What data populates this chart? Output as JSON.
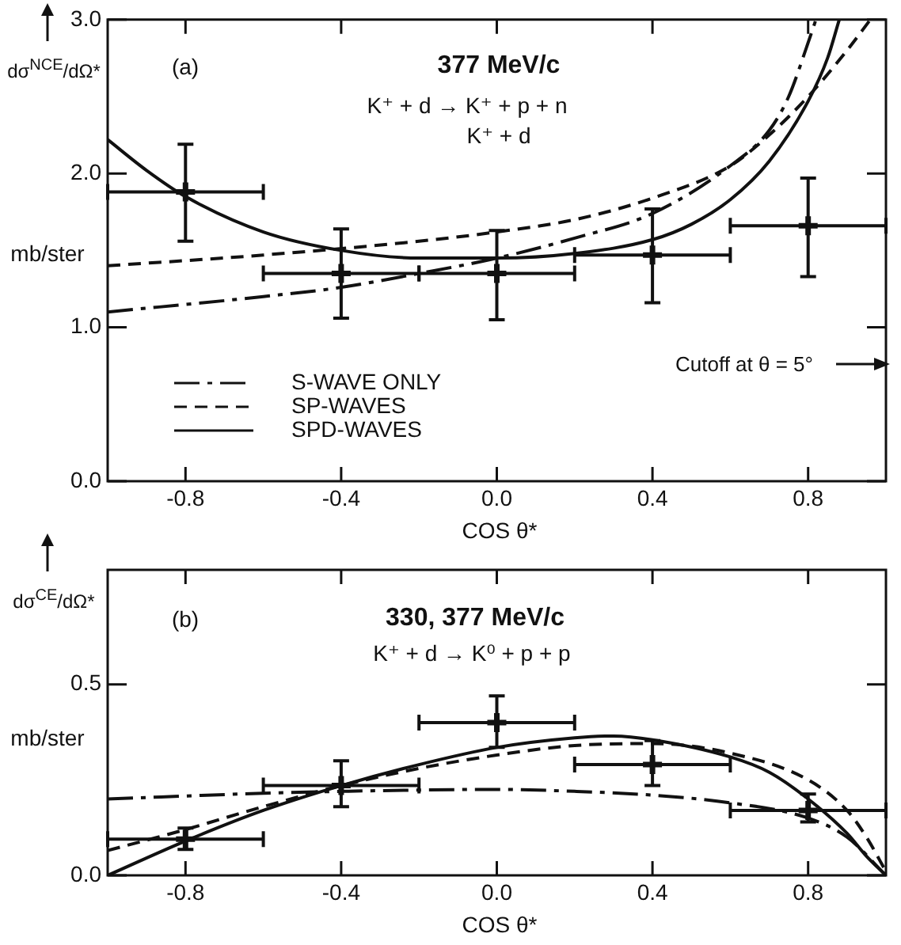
{
  "chart_data": [
    {
      "type": "line",
      "title": "377 MeV/c",
      "xlabel": "COS θ*",
      "ylabel": "dσ$^{NCE}$/dΩ*",
      "annotations": [
        "(a)",
        "K⁺ + d → K⁺ + p + n",
        "K⁺ + d",
        "mb/ster",
        "Cutoff at θ = 5°"
      ],
      "xlim": [
        -1,
        1
      ],
      "xticks": [
        -0.8,
        -0.4,
        {
          "value": 0,
          "label": "0.0"
        },
        0.4,
        0.8
      ],
      "ylim": [
        0,
        3
      ],
      "yticks": [
        {
          "value": 0,
          "label": "0.0"
        },
        {
          "value": 1,
          "label": "1.0"
        },
        {
          "value": 2,
          "label": "2.0"
        },
        {
          "value": 3,
          "label": "3.0"
        }
      ],
      "legend": "bottom left",
      "series": [
        {
          "name": "S-WAVE ONLY",
          "type": "line",
          "line_style": "dashdot",
          "color": "#111111",
          "x": [
            -1,
            -0.6,
            -0.4,
            -0.2,
            0,
            0.2,
            0.4,
            0.6,
            0.7,
            0.75,
            0.8,
            0.82
          ],
          "values": [
            1.1,
            1.2,
            1.26,
            1.35,
            1.45,
            1.58,
            1.74,
            2.05,
            2.28,
            2.5,
            2.85,
            3.0
          ]
        },
        {
          "name": "SP-WAVES",
          "type": "line",
          "line_style": "dashed",
          "color": "#111111",
          "x": [
            -1,
            -0.6,
            -0.2,
            0,
            0.2,
            0.4,
            0.6,
            0.7,
            0.8,
            0.9,
            0.96
          ],
          "values": [
            1.4,
            1.47,
            1.56,
            1.62,
            1.7,
            1.84,
            2.05,
            2.25,
            2.5,
            2.8,
            3.0
          ]
        },
        {
          "name": "SPD-WAVES",
          "type": "line",
          "line_style": "solid",
          "color": "#111111",
          "x": [
            -1,
            -0.9,
            -0.8,
            -0.6,
            -0.4,
            -0.2,
            0,
            0.2,
            0.4,
            0.5,
            0.6,
            0.7,
            0.8,
            0.85,
            0.88
          ],
          "values": [
            2.22,
            2.02,
            1.85,
            1.62,
            1.5,
            1.45,
            1.45,
            1.48,
            1.57,
            1.67,
            1.83,
            2.08,
            2.47,
            2.75,
            3.0
          ]
        },
        {
          "type": "scatter",
          "marker": "cross",
          "color": "#111111",
          "x": [
            -0.8,
            -0.4,
            0,
            0.4,
            0.8
          ],
          "values": [
            1.88,
            1.35,
            1.35,
            1.47,
            1.66
          ],
          "errors": [
            [
              1.56,
              2.19
            ],
            [
              1.06,
              1.64
            ],
            [
              1.05,
              1.63
            ],
            [
              1.16,
              1.77
            ],
            [
              1.33,
              1.97
            ]
          ],
          "xerrors": [
            [
              -1,
              -0.6
            ],
            [
              -0.6,
              -0.2
            ],
            [
              -0.2,
              0.2
            ],
            [
              0.2,
              0.6
            ],
            [
              0.6,
              1.0
            ]
          ]
        }
      ]
    },
    {
      "type": "line",
      "title": "330, 377 MeV/c",
      "xlabel": "COS θ*",
      "ylabel": "dσ$^{CE}$/dΩ*",
      "annotations": [
        "(b)",
        "K⁺ + d → K⁰ + p + p",
        "mb/ster"
      ],
      "xlim": [
        -1,
        1
      ],
      "xticks": [
        -0.8,
        -0.4,
        {
          "value": 0,
          "label": "0.0"
        },
        0.4,
        0.8
      ],
      "ylim": [
        0,
        0.8
      ],
      "yticks": [
        {
          "value": 0,
          "label": "0.0"
        },
        0.5
      ],
      "series": [
        {
          "type": "line",
          "line_style": "dashdot",
          "color": "#111111",
          "x": [
            -1,
            -0.6,
            -0.4,
            0,
            0.2,
            0.4,
            0.6,
            0.8,
            0.9,
            1.0
          ],
          "values": [
            0.2,
            0.215,
            0.22,
            0.225,
            0.22,
            0.21,
            0.19,
            0.15,
            0.1,
            0.0
          ]
        },
        {
          "type": "line",
          "line_style": "dashed",
          "color": "#111111",
          "x": [
            -1,
            -0.8,
            -0.6,
            -0.4,
            -0.2,
            0,
            0.2,
            0.4,
            0.6,
            0.8,
            0.9,
            0.95,
            1.0
          ],
          "values": [
            0.065,
            0.12,
            0.18,
            0.235,
            0.28,
            0.315,
            0.34,
            0.345,
            0.32,
            0.25,
            0.17,
            0.1,
            0.01
          ]
        },
        {
          "type": "line",
          "line_style": "solid",
          "color": "#111111",
          "x": [
            -1,
            -0.8,
            -0.6,
            -0.4,
            -0.2,
            0,
            0.2,
            0.3,
            0.4,
            0.6,
            0.7,
            0.8,
            0.9,
            0.95,
            1.0
          ],
          "values": [
            0,
            0.09,
            0.17,
            0.235,
            0.29,
            0.335,
            0.36,
            0.365,
            0.355,
            0.31,
            0.27,
            0.2,
            0.11,
            0.05,
            0
          ]
        },
        {
          "type": "scatter",
          "marker": "cross",
          "color": "#111111",
          "x": [
            -0.8,
            -0.4,
            0,
            0.4,
            0.8
          ],
          "values": [
            0.095,
            0.235,
            0.4,
            0.29,
            0.17
          ],
          "errors": [
            [
              0.068,
              0.124
            ],
            [
              0.18,
              0.3
            ],
            [
              0.335,
              0.47
            ],
            [
              0.235,
              0.353
            ],
            [
              0.14,
              0.213
            ]
          ],
          "xerrors": [
            [
              -1,
              -0.6
            ],
            [
              -0.6,
              -0.2
            ],
            [
              -0.2,
              0.2
            ],
            [
              0.2,
              0.6
            ],
            [
              0.6,
              1.0
            ]
          ]
        }
      ]
    }
  ]
}
